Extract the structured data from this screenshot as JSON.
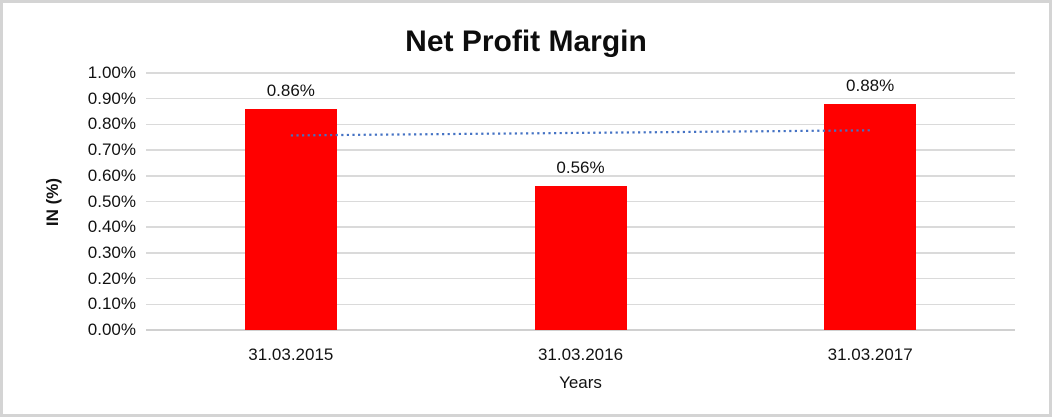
{
  "chart_data": {
    "type": "bar",
    "title": "Net Profit Margin",
    "xlabel": "Years",
    "ylabel": "IN (%)",
    "categories": [
      "31.03.2015",
      "31.03.2016",
      "31.03.2017"
    ],
    "values": [
      0.86,
      0.56,
      0.88
    ],
    "value_labels": [
      "0.86%",
      "0.56%",
      "0.88%"
    ],
    "ylim": [
      0,
      1.0
    ],
    "ytick_step": 0.1,
    "ytick_labels": [
      "0.00%",
      "0.10%",
      "0.20%",
      "0.30%",
      "0.40%",
      "0.50%",
      "0.60%",
      "0.70%",
      "0.80%",
      "0.90%",
      "1.00%"
    ],
    "grid": true,
    "legend": "none",
    "bar_color": "#FF0000",
    "trendline": {
      "type": "linear",
      "style": "dotted",
      "color": "#4472C4",
      "endpoint_values": [
        0.757,
        0.777
      ]
    }
  },
  "colors": {
    "background": "#FFFFFF",
    "frame_border": "#D4D4D4",
    "gridline": "#DADADA",
    "text": "#111111"
  }
}
